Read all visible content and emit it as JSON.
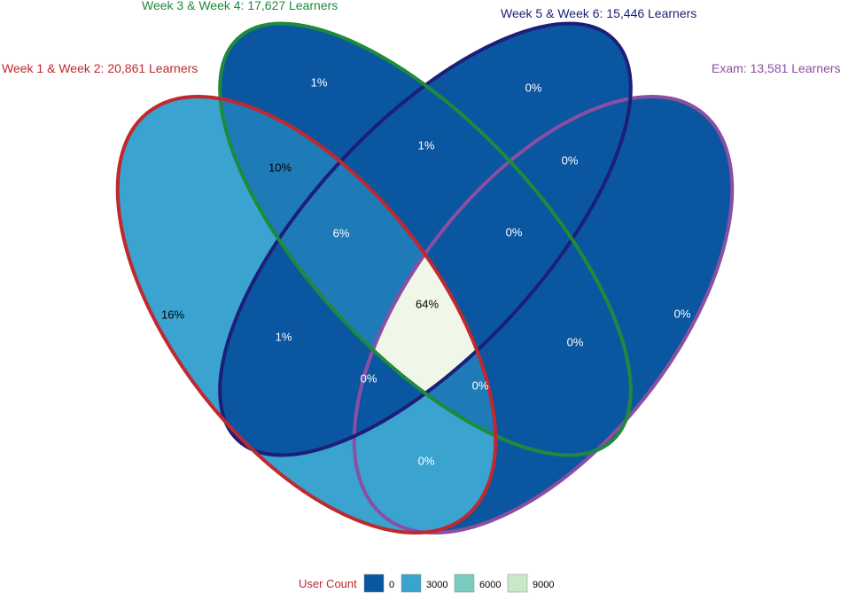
{
  "sets": [
    {
      "label": "Week 1 & Week 2: 20,861 Learners",
      "color": "#c0282d"
    },
    {
      "label": "Week 3 & Week 4: 17,627 Learners",
      "color": "#1e8a3c"
    },
    {
      "label": "Week 5 & Week 6: 15,446 Learners",
      "color": "#1c1f78"
    },
    {
      "label": "Exam: 13,581 Learners",
      "color": "#8a4fa3"
    }
  ],
  "regions": {
    "week12_only": "16%",
    "week34_only": "1%",
    "week56_only": "0%",
    "exam_only": "0%",
    "w12_w34": "10%",
    "w34_w56": "1%",
    "w56_exam": "0%",
    "w12_w34_w56": "6%",
    "w34_w56_exam": "0%",
    "all_four": "64%",
    "w12_w56": "1%",
    "w34_exam": "0%",
    "w12_w56_exam": "0%",
    "w12_w34_exam": "0%",
    "w12_exam": "0%"
  },
  "legend": {
    "title": "User Count",
    "title_color": "#c0282d",
    "items": [
      {
        "label": "0",
        "color": "#0b56a0"
      },
      {
        "label": "3000",
        "color": "#3aa3cf"
      },
      {
        "label": "6000",
        "color": "#7ccbc1"
      },
      {
        "label": "9000",
        "color": "#c8e8c8"
      }
    ]
  },
  "fills": {
    "dark": "#0b56a0",
    "mid": "#3aa3cf",
    "blend": "#1e7bb8",
    "center": "#f0f6e8"
  }
}
